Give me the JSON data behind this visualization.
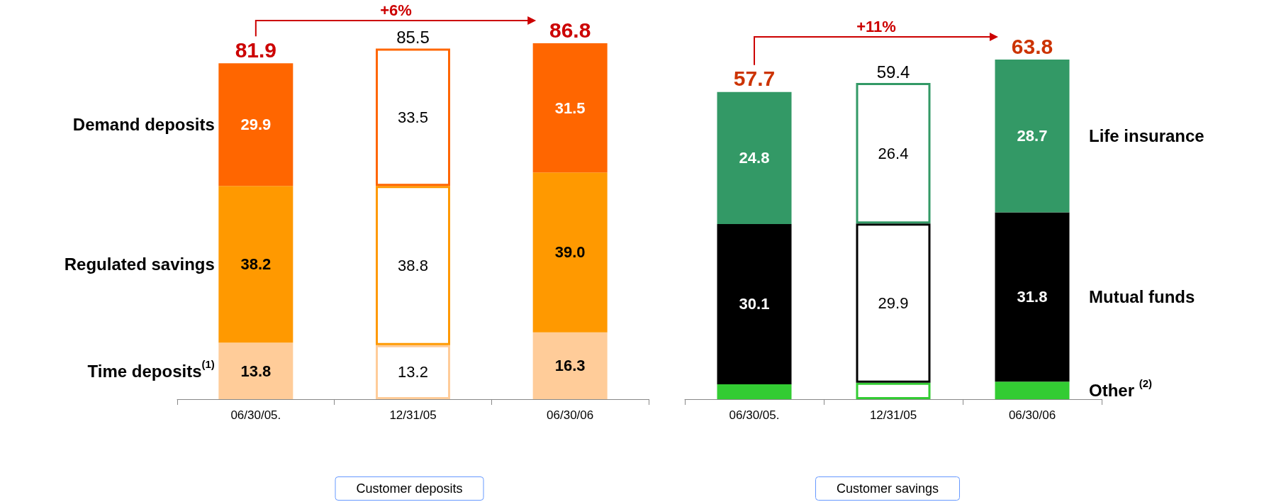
{
  "chart_data": [
    {
      "type": "bar",
      "title": "Customer deposits",
      "categories": [
        "06/30/05.",
        "12/31/05",
        "06/30/06"
      ],
      "stacked": true,
      "legend": "left",
      "annotations": [
        "+6%"
      ],
      "totals": [
        "81.9",
        "85.5",
        "86.8"
      ],
      "series": [
        {
          "name": "Time deposits$^{(1)}$",
          "color": "#ffcc99",
          "colors": [
            "#ffcc99",
            "#ffffff",
            "#ffcc99"
          ],
          "values": [
            13.8,
            13.2,
            16.3
          ],
          "value_labels": [
            "13.8",
            "13.2",
            "16.3"
          ]
        },
        {
          "name": "Regulated savings",
          "color": "#ff9900",
          "colors": [
            "#ff9900",
            "#ffffff",
            "#ff9900"
          ],
          "values": [
            38.2,
            38.8,
            39.0
          ],
          "value_labels": [
            "38.2",
            "38.8",
            "39.0"
          ]
        },
        {
          "name": "Demand deposits",
          "color": "#ff6600",
          "colors": [
            "#ff6600",
            "#ffffff",
            "#ff6600"
          ],
          "values": [
            29.9,
            33.5,
            31.5
          ],
          "value_labels": [
            "29.9",
            "33.5",
            "31.5"
          ]
        }
      ]
    },
    {
      "type": "bar",
      "title": "Customer savings",
      "categories": [
        "06/30/05.",
        "12/31/05",
        "06/30/06"
      ],
      "stacked": true,
      "legend": "right",
      "annotations": [
        "+11%"
      ],
      "totals": [
        "57.7",
        "59.4",
        "63.8"
      ],
      "series": [
        {
          "name": "Other $^{(2)}$",
          "color": "#33cc33",
          "colors": [
            "#33cc33",
            "#ffffff",
            "#33cc33"
          ],
          "values": [
            2.8,
            3.1,
            3.3
          ],
          "value_labels": [
            null,
            null,
            null
          ]
        },
        {
          "name": "Mutual funds",
          "color": "#000000",
          "colors": [
            "#000000",
            "#ffffff",
            "#000000"
          ],
          "values": [
            30.1,
            29.9,
            31.8
          ],
          "value_labels": [
            "30.1",
            "29.9",
            "31.8"
          ]
        },
        {
          "name": "Life insurance",
          "color": "#339966",
          "colors": [
            "#339966",
            "#ffffff",
            "#339966"
          ],
          "values": [
            24.8,
            26.4,
            28.7
          ],
          "value_labels": [
            "24.8",
            "26.4",
            "28.7"
          ]
        }
      ]
    }
  ]
}
